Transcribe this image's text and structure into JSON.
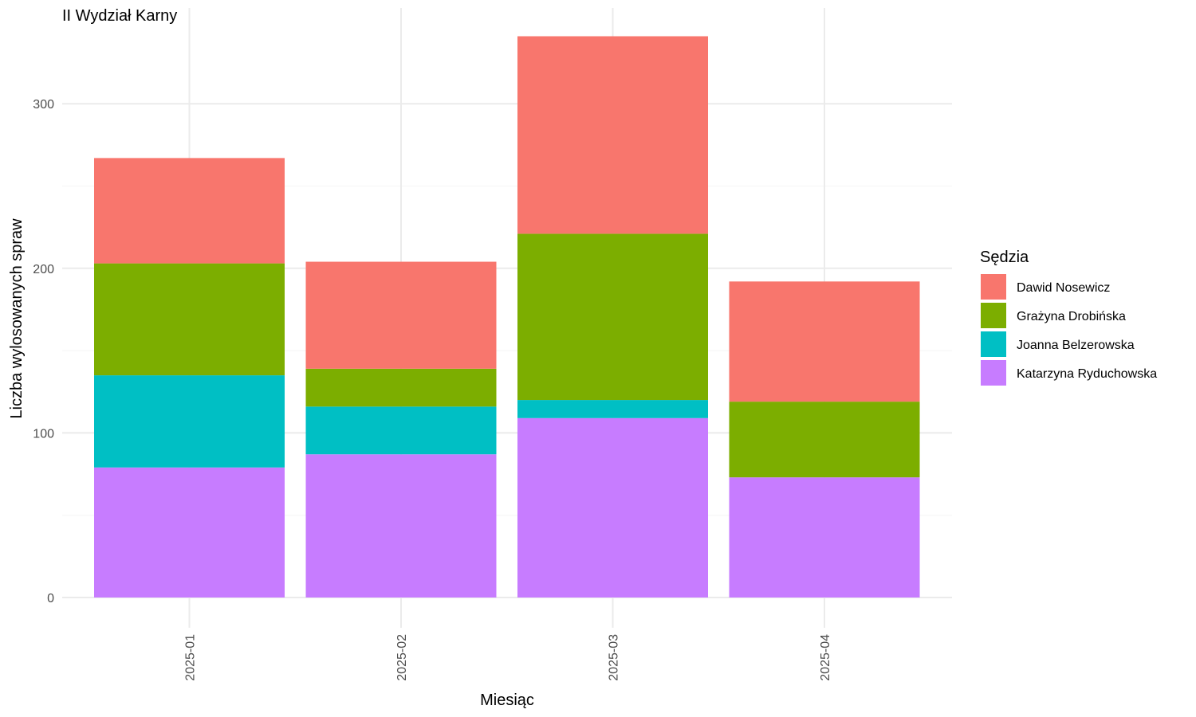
{
  "chart_data": {
    "type": "bar",
    "stacked": true,
    "title": "II Wydział Karny",
    "xlabel": "Miesiąc",
    "ylabel": "Liczba wylosowanych spraw",
    "categories": [
      "2025-01",
      "2025-02",
      "2025-03",
      "2025-04"
    ],
    "y_ticks": [
      0,
      100,
      200,
      300
    ],
    "y_tick_labels": [
      "0",
      "100",
      "200",
      "300"
    ],
    "ylim": [
      0,
      345
    ],
    "grid": true,
    "legend": {
      "title": "Sędzia",
      "position": "right"
    },
    "series": [
      {
        "name": "Katarzyna Ryduchowska",
        "color": "#C77CFF",
        "values": [
          79,
          87,
          109,
          73
        ]
      },
      {
        "name": "Joanna Belzerowska",
        "color": "#00BFC4",
        "values": [
          56,
          29,
          11,
          0
        ]
      },
      {
        "name": "Grażyna Drobińska",
        "color": "#7CAE00",
        "values": [
          68,
          23,
          101,
          46
        ]
      },
      {
        "name": "Dawid Nosewicz",
        "color": "#F8766D",
        "values": [
          64,
          65,
          120,
          73
        ]
      }
    ],
    "legend_order": [
      "Dawid Nosewicz",
      "Grażyna Drobińska",
      "Joanna Belzerowska",
      "Katarzyna Ryduchowska"
    ]
  }
}
